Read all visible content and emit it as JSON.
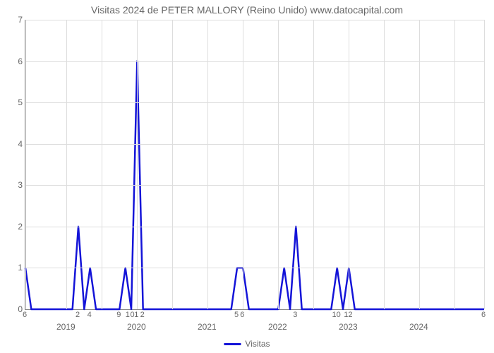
{
  "title": "Visitas 2024 de PETER MALLORY (Reino Unido) www.datocapital.com",
  "chart": {
    "type": "line",
    "line_color": "#1414d8",
    "line_width": 2.5,
    "background_color": "#ffffff",
    "grid_color": "#dddddd",
    "axis_color": "#888888",
    "tick_color": "#666666",
    "title_color": "#666666",
    "title_fontsize": 14,
    "tick_fontsize": 12,
    "ylim": [
      0,
      7
    ],
    "yticks": [
      0,
      1,
      2,
      3,
      4,
      5,
      6,
      7
    ],
    "x_domain": [
      0,
      78
    ],
    "x_year_ticks": [
      {
        "pos": 7,
        "label": "2019"
      },
      {
        "pos": 19,
        "label": "2020"
      },
      {
        "pos": 31,
        "label": "2021"
      },
      {
        "pos": 43,
        "label": "2022"
      },
      {
        "pos": 55,
        "label": "2023"
      },
      {
        "pos": 67,
        "label": "2024"
      }
    ],
    "x_minor_ticks": [
      {
        "pos": 0,
        "label": "6"
      },
      {
        "pos": 9,
        "label": "2"
      },
      {
        "pos": 11,
        "label": "4"
      },
      {
        "pos": 16,
        "label": "9"
      },
      {
        "pos": 17.5,
        "label": "1"
      },
      {
        "pos": 18.3,
        "label": "0"
      },
      {
        "pos": 19,
        "label": "1"
      },
      {
        "pos": 20,
        "label": "2"
      },
      {
        "pos": 36,
        "label": "5"
      },
      {
        "pos": 37,
        "label": "6"
      },
      {
        "pos": 46,
        "label": "3"
      },
      {
        "pos": 53,
        "label": "10"
      },
      {
        "pos": 55,
        "label": "12"
      },
      {
        "pos": 78,
        "label": "6"
      }
    ],
    "x_grid_positions": [
      0,
      7,
      19,
      31,
      43,
      55,
      67,
      78
    ],
    "x_minor_grid_positions": [
      13,
      25,
      37,
      49,
      61,
      73
    ],
    "data_points": [
      {
        "x": 0,
        "y": 1
      },
      {
        "x": 1,
        "y": 0
      },
      {
        "x": 8,
        "y": 0
      },
      {
        "x": 9,
        "y": 2
      },
      {
        "x": 10,
        "y": 0
      },
      {
        "x": 11,
        "y": 1
      },
      {
        "x": 12,
        "y": 0
      },
      {
        "x": 16,
        "y": 0
      },
      {
        "x": 17,
        "y": 1
      },
      {
        "x": 18,
        "y": 0
      },
      {
        "x": 19,
        "y": 6
      },
      {
        "x": 20,
        "y": 0
      },
      {
        "x": 35,
        "y": 0
      },
      {
        "x": 36,
        "y": 1
      },
      {
        "x": 37,
        "y": 1
      },
      {
        "x": 38,
        "y": 0
      },
      {
        "x": 43,
        "y": 0
      },
      {
        "x": 44,
        "y": 1
      },
      {
        "x": 45,
        "y": 0
      },
      {
        "x": 46,
        "y": 2
      },
      {
        "x": 47,
        "y": 0
      },
      {
        "x": 52,
        "y": 0
      },
      {
        "x": 53,
        "y": 1
      },
      {
        "x": 54,
        "y": 0
      },
      {
        "x": 55,
        "y": 1
      },
      {
        "x": 56,
        "y": 0
      },
      {
        "x": 78,
        "y": 0
      }
    ],
    "legend": {
      "label": "Visitas",
      "color": "#1414d8"
    }
  }
}
